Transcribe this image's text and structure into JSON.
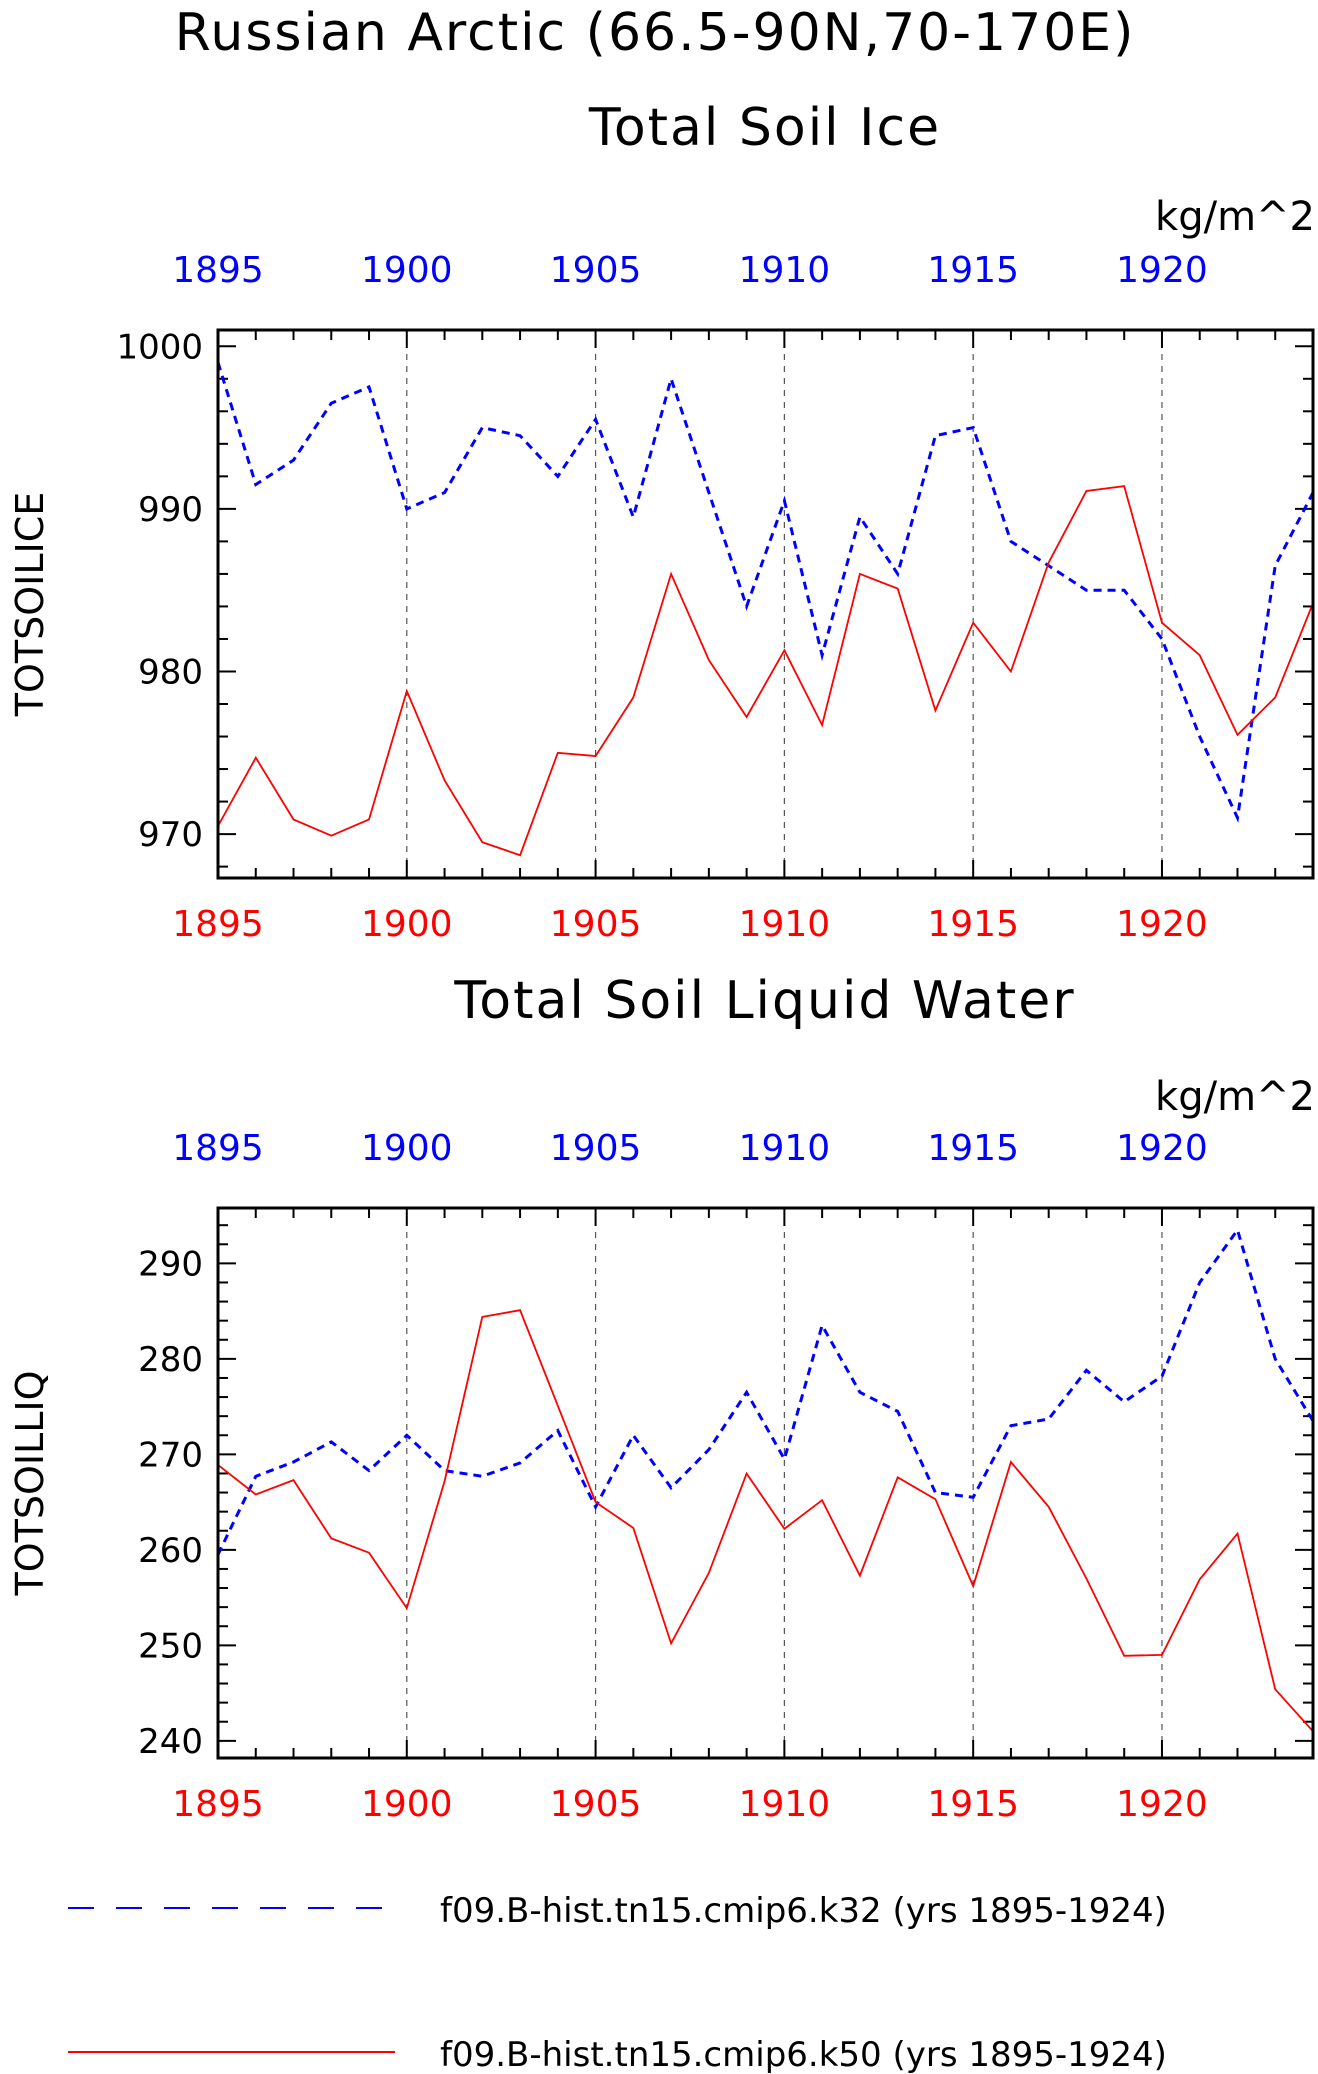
{
  "title": {
    "line1": "Russian Arctic (66.5-90N,70-170E)",
    "line2": "Total Soil Ice"
  },
  "colors": {
    "k32": "#0000ff",
    "k50": "#ff0000",
    "axis": "#000000",
    "grid": "#555555"
  },
  "chart_data": [
    {
      "type": "line",
      "title": "Total Soil Ice",
      "units": "kg/m^2",
      "ylabel": "TOTSOILICE",
      "xlabel": "",
      "xlim": [
        1895,
        1924
      ],
      "ylim": [
        967.3,
        1001
      ],
      "yticks": [
        970,
        980,
        990,
        1000
      ],
      "ytick_labels": [
        "970",
        "980",
        "990",
        "1000"
      ],
      "xticks": [
        1895,
        1900,
        1905,
        1910,
        1915,
        1920
      ],
      "xtick_labels": [
        "1895",
        "1900",
        "1905",
        "1910",
        "1915",
        "1920"
      ],
      "grid": "vertical dashed at labeled years",
      "x": [
        1895,
        1896,
        1897,
        1898,
        1899,
        1900,
        1901,
        1902,
        1903,
        1904,
        1905,
        1906,
        1907,
        1908,
        1909,
        1910,
        1911,
        1912,
        1913,
        1914,
        1915,
        1916,
        1917,
        1918,
        1919,
        1920,
        1921,
        1922,
        1923,
        1924
      ],
      "series": [
        {
          "name": "f09.B-hist.tn15.cmip6.k32 (yrs 1895-1924)",
          "style": "dashed",
          "values": [
            999.0,
            991.5,
            993.0,
            996.5,
            997.5,
            990.0,
            991.0,
            995.0,
            994.5,
            992.0,
            995.5,
            989.5,
            998.0,
            991.0,
            984.0,
            990.5,
            981.0,
            989.5,
            986.0,
            994.5,
            995.0,
            988.0,
            986.5,
            985.0,
            985.0,
            982.0,
            976.0,
            971.0,
            986.5,
            991.0
          ]
        },
        {
          "name": "f09.B-hist.tn15.cmip6.k50 (yrs 1895-1924)",
          "style": "solid",
          "values": [
            970.5,
            974.7,
            970.9,
            969.9,
            970.9,
            978.8,
            973.3,
            969.5,
            968.7,
            975.0,
            974.8,
            978.4,
            986.0,
            980.7,
            977.2,
            981.3,
            976.7,
            986.0,
            985.1,
            977.6,
            983.0,
            980.0,
            986.7,
            991.1,
            991.4,
            983.0,
            981.0,
            976.1,
            978.4,
            984.2
          ]
        }
      ]
    },
    {
      "type": "line",
      "title": "Total Soil Liquid Water",
      "units": "kg/m^2",
      "ylabel": "TOTSOILLIQ",
      "xlabel": "",
      "xlim": [
        1895,
        1924
      ],
      "ylim": [
        238.2,
        295.8
      ],
      "yticks": [
        240,
        250,
        260,
        270,
        280,
        290
      ],
      "ytick_labels": [
        "240",
        "250",
        "260",
        "270",
        "280",
        "290"
      ],
      "xticks": [
        1895,
        1900,
        1905,
        1910,
        1915,
        1920
      ],
      "xtick_labels": [
        "1895",
        "1900",
        "1905",
        "1910",
        "1915",
        "1920"
      ],
      "grid": "vertical dashed at labeled years",
      "x": [
        1895,
        1896,
        1897,
        1898,
        1899,
        1900,
        1901,
        1902,
        1903,
        1904,
        1905,
        1906,
        1907,
        1908,
        1909,
        1910,
        1911,
        1912,
        1913,
        1914,
        1915,
        1916,
        1917,
        1918,
        1919,
        1920,
        1921,
        1922,
        1923,
        1924
      ],
      "series": [
        {
          "name": "f09.B-hist.tn15.cmip6.k32 (yrs 1895-1924)",
          "style": "dashed",
          "values": [
            259.5,
            267.7,
            269.2,
            271.3,
            268.3,
            272.0,
            268.3,
            267.7,
            269.1,
            272.5,
            264.5,
            272.0,
            266.5,
            270.5,
            276.5,
            269.5,
            283.5,
            276.5,
            274.5,
            266.0,
            265.5,
            273.0,
            273.7,
            278.8,
            275.5,
            278.2,
            288.0,
            293.5,
            280.0,
            273.5
          ]
        },
        {
          "name": "f09.B-hist.tn15.cmip6.k50 (yrs 1895-1924)",
          "style": "solid",
          "values": [
            268.9,
            265.8,
            267.3,
            261.2,
            259.7,
            253.9,
            267.2,
            284.4,
            285.1,
            275.1,
            265.0,
            262.3,
            250.2,
            257.6,
            268.0,
            262.2,
            265.2,
            257.3,
            267.6,
            265.3,
            256.2,
            269.2,
            264.5,
            257.0,
            248.9,
            249.0,
            256.9,
            261.7,
            245.4,
            241.0
          ]
        }
      ]
    }
  ],
  "panel2_title": "Total Soil Liquid Water",
  "units_label": "kg/m^2",
  "legend": {
    "placement": "bottom",
    "items": [
      {
        "label": "f09.B-hist.tn15.cmip6.k32 (yrs 1895-1924)",
        "style": "dashed",
        "color": "#0000ff"
      },
      {
        "label": "f09.B-hist.tn15.cmip6.k50 (yrs 1895-1924)",
        "style": "solid",
        "color": "#ff0000"
      }
    ]
  }
}
